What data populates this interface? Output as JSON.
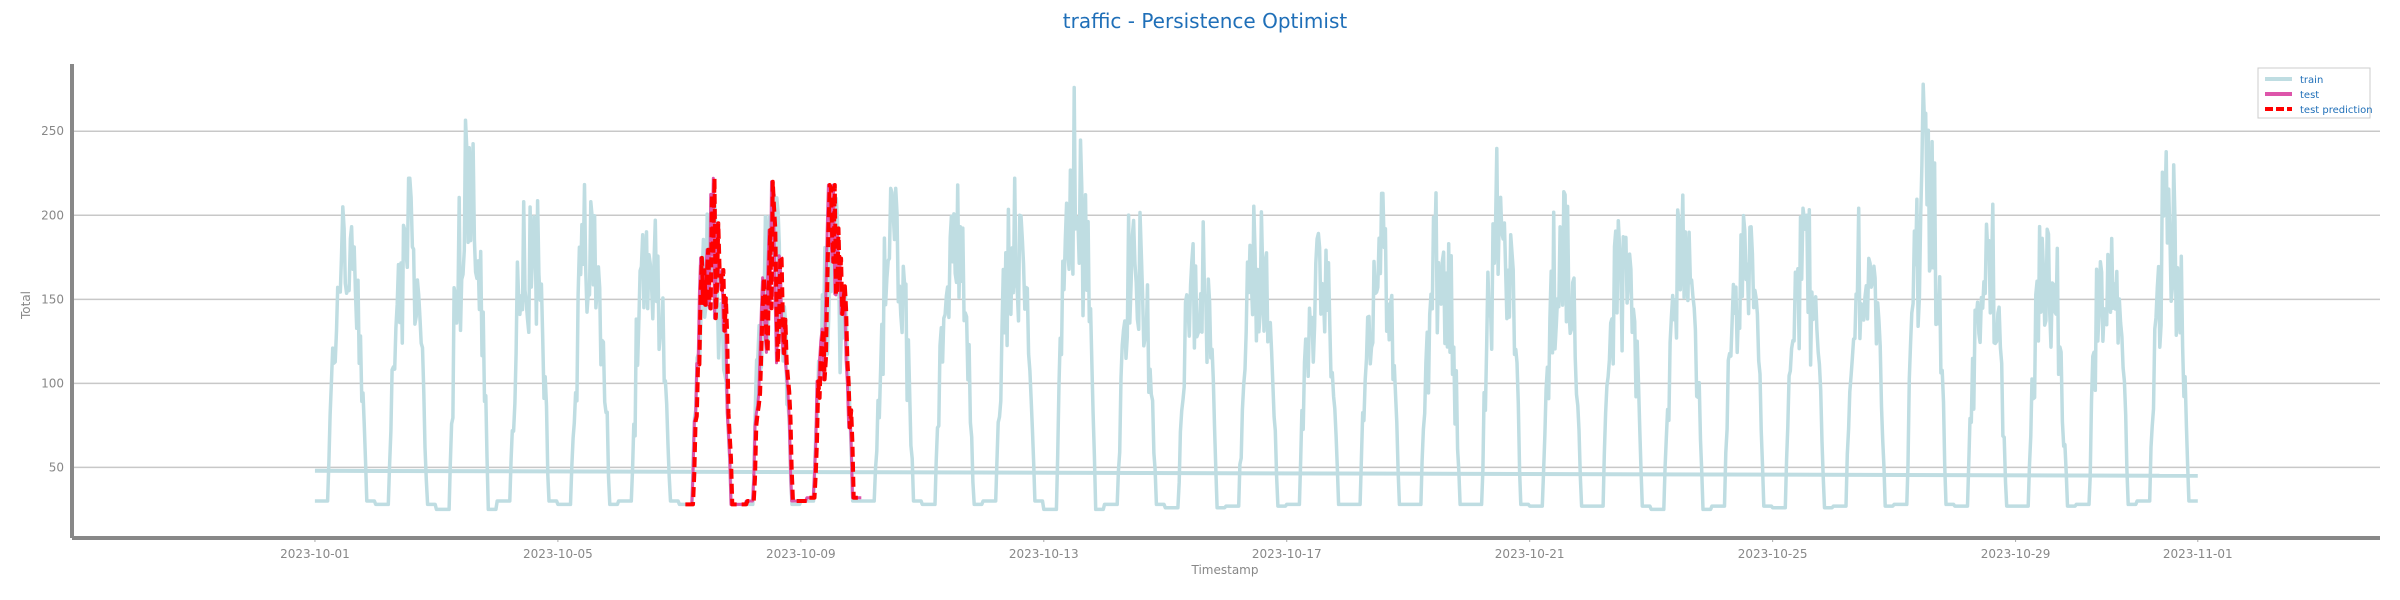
{
  "chart_data": {
    "type": "line",
    "title": "traffic - Persistence Optimist",
    "xlabel": "Timestamp",
    "ylabel": "Total",
    "xlim": [
      "2023-09-27",
      "2023-11-04"
    ],
    "ylim": [
      8,
      290
    ],
    "grid": "horizontal",
    "legend_position": "top-right",
    "x_tick_labels": [
      "2023-10-01",
      "2023-10-05",
      "2023-10-09",
      "2023-10-13",
      "2023-10-17",
      "2023-10-21",
      "2023-10-25",
      "2023-10-29",
      "2023-11-01"
    ],
    "y_tick_labels": [
      "50",
      "100",
      "150",
      "200",
      "250"
    ],
    "x_tick_values": [
      4,
      8,
      12,
      16,
      20,
      24,
      28,
      32,
      35
    ],
    "y_tick_values": [
      50,
      100,
      150,
      200,
      250
    ],
    "series": [
      {
        "name": "train",
        "color": "#bfdde2",
        "x_range_days": [
          4.0,
          35.0
        ],
        "daily_peaks": [
          225,
          222,
          262,
          232,
          224,
          218,
          214,
          212,
          210,
          216,
          222,
          222,
          276,
          212,
          215,
          214,
          212,
          213,
          214,
          252,
          214,
          215,
          212,
          216,
          215,
          213,
          278,
          215,
          212,
          214,
          238
        ],
        "daily_troughs": [
          30,
          28,
          25,
          30,
          28,
          30,
          28,
          28,
          30,
          30,
          28,
          30,
          25,
          28,
          26,
          27,
          28,
          28,
          28,
          28,
          27,
          27,
          25,
          27,
          26,
          27,
          28,
          27,
          27,
          28,
          30
        ]
      },
      {
        "name": "test",
        "color": "#dd55aa",
        "x_range_days": [
          10.1,
          13.0
        ],
        "daily_peaks": [
          222,
          220,
          218
        ],
        "daily_troughs": [
          28,
          30,
          32
        ]
      },
      {
        "name": "test prediction",
        "color": "#ff0000",
        "x_range_days": [
          10.1,
          13.0
        ],
        "daily_peaks": [
          222,
          220,
          218
        ],
        "daily_troughs": [
          28,
          30,
          32
        ]
      }
    ]
  },
  "legend": {
    "items": [
      {
        "label": "train",
        "color": "#bfdde2"
      },
      {
        "label": "test",
        "color": "#dd55aa"
      },
      {
        "label": "test prediction",
        "color": "#ff0000"
      }
    ]
  }
}
